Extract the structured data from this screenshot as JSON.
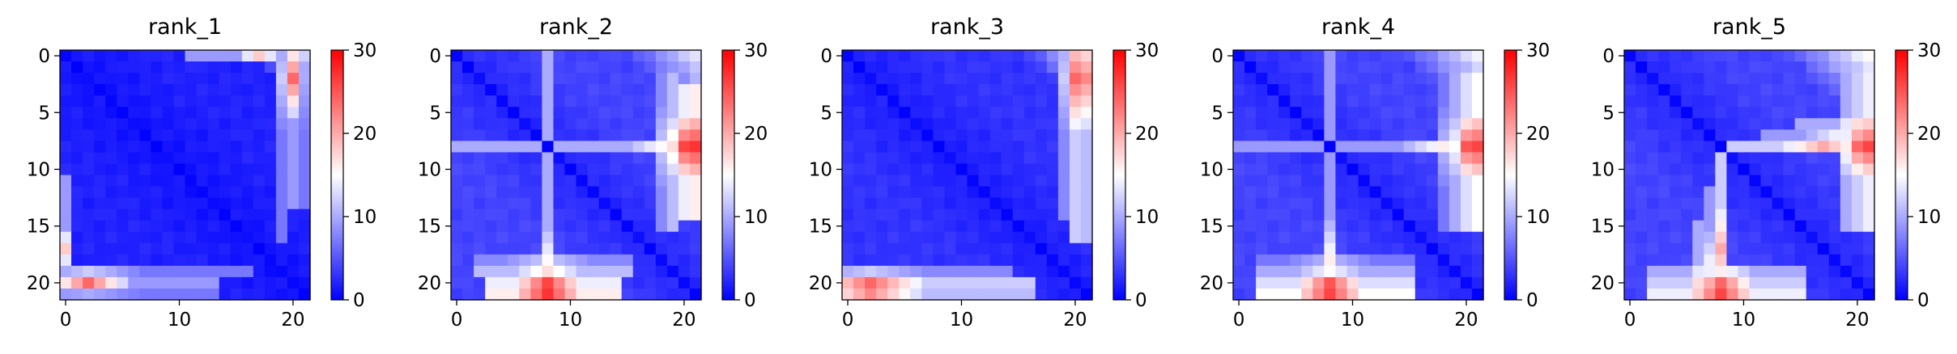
{
  "colorbar": {
    "colors": [
      "#0000ff",
      "#ffffff",
      "#ff0000"
    ],
    "ticks": [
      0,
      10,
      20,
      30
    ],
    "vmin": 0,
    "vmax": 30
  },
  "chart_data": [
    {
      "type": "heatmap",
      "title": "rank_1",
      "size": 22,
      "x_ticks": [
        0,
        10,
        20
      ],
      "y_ticks": [
        0,
        5,
        10,
        15,
        20
      ],
      "vmin": 0,
      "vmax": 30,
      "baseline": 2,
      "corner_top_right": 10,
      "corner_top_right_falloff": 2,
      "features": [
        {
          "kind": "row",
          "index": 20,
          "from": 0,
          "to": 13,
          "peak": 24,
          "center": 2,
          "spread": 4,
          "min": 9
        },
        {
          "kind": "row",
          "index": 19,
          "from": 0,
          "to": 16,
          "peak": 12,
          "center": 2,
          "spread": 5,
          "min": 7
        },
        {
          "kind": "row",
          "index": 21,
          "from": 0,
          "to": 13,
          "peak": 10,
          "center": 2,
          "spread": 5,
          "min": 7
        },
        {
          "kind": "row",
          "index": 0,
          "from": 11,
          "to": 21,
          "peak": 18,
          "center": 17,
          "spread": 2,
          "min": 9
        }
      ]
    },
    {
      "type": "heatmap",
      "title": "rank_2",
      "size": 22,
      "x_ticks": [
        0,
        10,
        20
      ],
      "y_ticks": [
        0,
        5,
        10,
        15,
        20
      ],
      "vmin": 0,
      "vmax": 30,
      "baseline": 4,
      "corner_top_right": 9,
      "corner_top_right_falloff": 1.5,
      "features": [
        {
          "kind": "row",
          "index": 8,
          "from": 0,
          "to": 21,
          "peak": 17,
          "center": 19,
          "spread": 4,
          "min": 10
        },
        {
          "kind": "row",
          "index": 21,
          "from": 3,
          "to": 14,
          "peak": 27,
          "center": 8,
          "spread": 3,
          "min": 16
        },
        {
          "kind": "row",
          "index": 20,
          "from": 3,
          "to": 14,
          "peak": 26,
          "center": 8,
          "spread": 3,
          "min": 14
        },
        {
          "kind": "row",
          "index": 19,
          "from": 2,
          "to": 15,
          "peak": 17,
          "center": 8,
          "spread": 3,
          "min": 11
        },
        {
          "kind": "row",
          "index": 18,
          "from": 2,
          "to": 15,
          "peak": 12,
          "center": 8,
          "spread": 4,
          "min": 8
        }
      ]
    },
    {
      "type": "heatmap",
      "title": "rank_3",
      "size": 22,
      "x_ticks": [
        0,
        10,
        20
      ],
      "y_ticks": [
        0,
        5,
        10,
        15,
        20
      ],
      "vmin": 0,
      "vmax": 30,
      "baseline": 3,
      "corner_top_right": 11,
      "corner_top_right_falloff": 2,
      "features": [
        {
          "kind": "row",
          "index": 20,
          "from": 0,
          "to": 16,
          "peak": 24,
          "center": 2,
          "spread": 5,
          "min": 12
        },
        {
          "kind": "row",
          "index": 21,
          "from": 0,
          "to": 16,
          "peak": 22,
          "center": 2,
          "spread": 5,
          "min": 11
        },
        {
          "kind": "row",
          "index": 19,
          "from": 0,
          "to": 14,
          "peak": 12,
          "center": 2,
          "spread": 5,
          "min": 8
        }
      ]
    },
    {
      "type": "heatmap",
      "title": "rank_4",
      "size": 22,
      "x_ticks": [
        0,
        10,
        20
      ],
      "y_ticks": [
        0,
        5,
        10,
        15,
        20
      ],
      "vmin": 0,
      "vmax": 30,
      "baseline": 4,
      "corner_top_right": 10,
      "corner_top_right_falloff": 1.5,
      "features": [
        {
          "kind": "row",
          "index": 8,
          "from": 0,
          "to": 21,
          "peak": 16,
          "center": 18,
          "spread": 4,
          "min": 9
        },
        {
          "kind": "row",
          "index": 21,
          "from": 2,
          "to": 15,
          "peak": 26,
          "center": 8,
          "spread": 3,
          "min": 15
        },
        {
          "kind": "row",
          "index": 20,
          "from": 2,
          "to": 15,
          "peak": 25,
          "center": 8,
          "spread": 3,
          "min": 13
        },
        {
          "kind": "row",
          "index": 19,
          "from": 2,
          "to": 15,
          "peak": 15,
          "center": 8,
          "spread": 3,
          "min": 10
        },
        {
          "kind": "row",
          "index": 18,
          "from": 2,
          "to": 15,
          "peak": 11,
          "center": 8,
          "spread": 4,
          "min": 7
        }
      ]
    },
    {
      "type": "heatmap",
      "title": "rank_5",
      "size": 22,
      "x_ticks": [
        0,
        10,
        20
      ],
      "y_ticks": [
        0,
        5,
        10,
        15,
        20
      ],
      "vmin": 0,
      "vmax": 30,
      "baseline": 4,
      "corner_top_right": 11,
      "corner_top_right_falloff": 1.5,
      "features": [
        {
          "kind": "row",
          "index": 8,
          "from": 9,
          "to": 21,
          "peak": 20,
          "center": 17,
          "spread": 4,
          "min": 12
        },
        {
          "kind": "row",
          "index": 7,
          "from": 12,
          "to": 21,
          "peak": 14,
          "center": 18,
          "spread": 3,
          "min": 9
        },
        {
          "kind": "row",
          "index": 6,
          "from": 15,
          "to": 21,
          "peak": 17,
          "center": 20,
          "spread": 2,
          "min": 10
        },
        {
          "kind": "row",
          "index": 21,
          "from": 2,
          "to": 15,
          "peak": 26,
          "center": 8,
          "spread": 3,
          "min": 14
        },
        {
          "kind": "row",
          "index": 20,
          "from": 2,
          "to": 15,
          "peak": 24,
          "center": 8,
          "spread": 3,
          "min": 12
        },
        {
          "kind": "row",
          "index": 19,
          "from": 2,
          "to": 15,
          "peak": 16,
          "center": 8,
          "spread": 3,
          "min": 10
        }
      ]
    }
  ]
}
